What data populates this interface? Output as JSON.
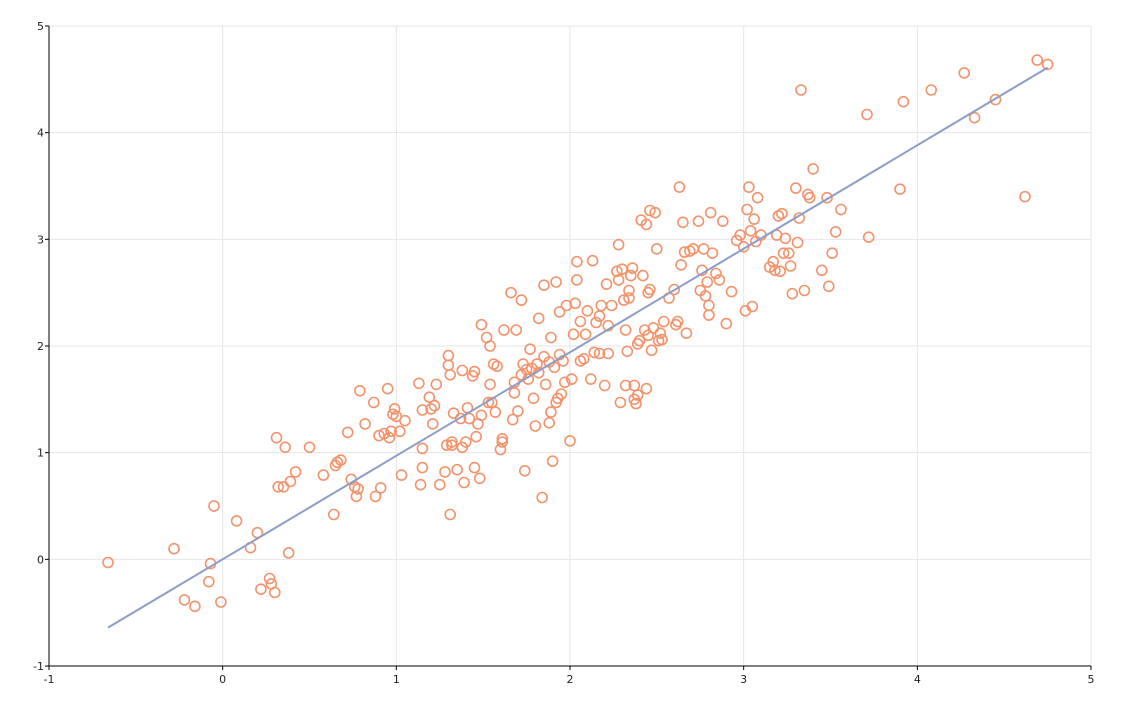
{
  "colors": {
    "points": "#f4926a",
    "fit_line": "#8c9dc8",
    "grid": "#e6e6e6",
    "axis": "#000000"
  },
  "chart_data": {
    "type": "scatter",
    "title": "",
    "xlabel": "",
    "ylabel": "",
    "xlim": [
      -1,
      5
    ],
    "ylim": [
      -1,
      5
    ],
    "x_ticks": [
      -1,
      0,
      1,
      2,
      3,
      4,
      5
    ],
    "y_ticks": [
      -1,
      0,
      1,
      2,
      3,
      4,
      5
    ],
    "x_tick_labels": [
      "-1",
      "0",
      "1",
      "2",
      "3",
      "4",
      "5"
    ],
    "y_tick_labels": [
      "-1",
      "0",
      "1",
      "2",
      "3",
      "4",
      "5"
    ],
    "grid": true,
    "legend": "none",
    "series": [
      {
        "type": "scatter",
        "marker": "open-circle",
        "points": [
          [
            -0.66,
            -0.03
          ],
          [
            -0.28,
            0.1
          ],
          [
            -0.22,
            -0.38
          ],
          [
            -0.16,
            -0.44
          ],
          [
            -0.08,
            -0.21
          ],
          [
            -0.07,
            -0.04
          ],
          [
            -0.05,
            0.5
          ],
          [
            -0.01,
            -0.4
          ],
          [
            0.08,
            0.36
          ],
          [
            0.16,
            0.11
          ],
          [
            0.2,
            0.25
          ],
          [
            0.22,
            -0.28
          ],
          [
            0.27,
            -0.18
          ],
          [
            0.28,
            -0.23
          ],
          [
            0.3,
            -0.31
          ],
          [
            0.31,
            1.14
          ],
          [
            0.32,
            0.68
          ],
          [
            0.35,
            0.68
          ],
          [
            0.36,
            1.05
          ],
          [
            0.38,
            0.06
          ],
          [
            0.39,
            0.73
          ],
          [
            0.42,
            0.82
          ],
          [
            0.5,
            1.05
          ],
          [
            0.58,
            0.79
          ],
          [
            0.64,
            0.42
          ],
          [
            0.65,
            0.88
          ],
          [
            0.66,
            0.91
          ],
          [
            0.68,
            0.93
          ],
          [
            0.72,
            1.19
          ],
          [
            0.74,
            0.75
          ],
          [
            0.76,
            0.68
          ],
          [
            0.77,
            0.59
          ],
          [
            0.78,
            0.66
          ],
          [
            0.79,
            1.58
          ],
          [
            0.82,
            1.27
          ],
          [
            0.87,
            1.47
          ],
          [
            0.88,
            0.59
          ],
          [
            0.9,
            1.16
          ],
          [
            0.91,
            0.67
          ],
          [
            0.93,
            1.18
          ],
          [
            0.95,
            1.6
          ],
          [
            0.96,
            1.14
          ],
          [
            0.97,
            1.2
          ],
          [
            0.98,
            1.36
          ],
          [
            0.99,
            1.41
          ],
          [
            1.0,
            1.34
          ],
          [
            1.02,
            1.2
          ],
          [
            1.03,
            0.79
          ],
          [
            1.05,
            1.3
          ],
          [
            1.13,
            1.65
          ],
          [
            1.14,
            0.7
          ],
          [
            1.15,
            1.4
          ],
          [
            1.15,
            0.86
          ],
          [
            1.15,
            1.04
          ],
          [
            1.19,
            1.52
          ],
          [
            1.2,
            1.41
          ],
          [
            1.21,
            1.27
          ],
          [
            1.22,
            1.44
          ],
          [
            1.23,
            1.64
          ],
          [
            1.25,
            0.7
          ],
          [
            1.28,
            0.82
          ],
          [
            1.29,
            1.07
          ],
          [
            1.3,
            1.82
          ],
          [
            1.3,
            1.91
          ],
          [
            1.31,
            1.73
          ],
          [
            1.31,
            0.42
          ],
          [
            1.32,
            1.07
          ],
          [
            1.32,
            1.1
          ],
          [
            1.33,
            1.37
          ],
          [
            1.35,
            0.84
          ],
          [
            1.37,
            1.32
          ],
          [
            1.38,
            1.77
          ],
          [
            1.38,
            1.05
          ],
          [
            1.39,
            0.72
          ],
          [
            1.4,
            1.1
          ],
          [
            1.41,
            1.42
          ],
          [
            1.42,
            1.32
          ],
          [
            1.44,
            1.72
          ],
          [
            1.45,
            1.76
          ],
          [
            1.45,
            0.86
          ],
          [
            1.46,
            1.15
          ],
          [
            1.47,
            1.27
          ],
          [
            1.48,
            0.76
          ],
          [
            1.49,
            2.2
          ],
          [
            1.49,
            1.35
          ],
          [
            1.52,
            2.08
          ],
          [
            1.53,
            1.47
          ],
          [
            1.54,
            2.0
          ],
          [
            1.54,
            1.64
          ],
          [
            1.55,
            1.47
          ],
          [
            1.56,
            1.83
          ],
          [
            1.57,
            1.38
          ],
          [
            1.58,
            1.81
          ],
          [
            1.6,
            1.03
          ],
          [
            1.61,
            1.1
          ],
          [
            1.61,
            1.13
          ],
          [
            1.62,
            2.15
          ],
          [
            1.66,
            2.5
          ],
          [
            1.67,
            1.31
          ],
          [
            1.68,
            1.66
          ],
          [
            1.68,
            1.56
          ],
          [
            1.69,
            2.15
          ],
          [
            1.7,
            1.39
          ],
          [
            1.72,
            2.43
          ],
          [
            1.72,
            1.73
          ],
          [
            1.73,
            1.83
          ],
          [
            1.74,
            0.83
          ],
          [
            1.75,
            1.78
          ],
          [
            1.76,
            1.69
          ],
          [
            1.77,
            1.97
          ],
          [
            1.78,
            1.79
          ],
          [
            1.79,
            1.51
          ],
          [
            1.8,
            1.25
          ],
          [
            1.81,
            1.83
          ],
          [
            1.82,
            1.75
          ],
          [
            1.82,
            2.26
          ],
          [
            1.84,
            0.58
          ],
          [
            1.85,
            2.57
          ],
          [
            1.85,
            1.9
          ],
          [
            1.86,
            1.64
          ],
          [
            1.88,
            1.85
          ],
          [
            1.88,
            1.28
          ],
          [
            1.89,
            2.08
          ],
          [
            1.89,
            1.38
          ],
          [
            1.9,
            0.92
          ],
          [
            1.91,
            1.8
          ],
          [
            1.92,
            2.6
          ],
          [
            1.92,
            1.47
          ],
          [
            1.93,
            1.51
          ],
          [
            1.94,
            1.92
          ],
          [
            1.94,
            2.32
          ],
          [
            1.95,
            1.55
          ],
          [
            1.96,
            1.86
          ],
          [
            1.97,
            1.66
          ],
          [
            1.98,
            2.38
          ],
          [
            2.0,
            1.11
          ],
          [
            2.01,
            1.69
          ],
          [
            2.02,
            2.11
          ],
          [
            2.03,
            2.4
          ],
          [
            2.04,
            2.79
          ],
          [
            2.04,
            2.62
          ],
          [
            2.06,
            2.23
          ],
          [
            2.06,
            1.86
          ],
          [
            2.08,
            1.88
          ],
          [
            2.09,
            2.11
          ],
          [
            2.1,
            2.33
          ],
          [
            2.12,
            1.69
          ],
          [
            2.13,
            2.8
          ],
          [
            2.14,
            1.94
          ],
          [
            2.15,
            2.22
          ],
          [
            2.17,
            2.28
          ],
          [
            2.17,
            1.93
          ],
          [
            2.18,
            2.38
          ],
          [
            2.2,
            1.63
          ],
          [
            2.21,
            2.58
          ],
          [
            2.22,
            2.19
          ],
          [
            2.22,
            1.93
          ],
          [
            2.24,
            2.38
          ],
          [
            2.27,
            2.7
          ],
          [
            2.28,
            2.62
          ],
          [
            2.28,
            2.95
          ],
          [
            2.29,
            1.47
          ],
          [
            2.3,
            2.72
          ],
          [
            2.31,
            2.43
          ],
          [
            2.32,
            1.63
          ],
          [
            2.32,
            2.15
          ],
          [
            2.33,
            1.95
          ],
          [
            2.34,
            2.45
          ],
          [
            2.34,
            2.52
          ],
          [
            2.35,
            2.66
          ],
          [
            2.36,
            2.73
          ],
          [
            2.37,
            1.5
          ],
          [
            2.37,
            1.63
          ],
          [
            2.38,
            1.46
          ],
          [
            2.39,
            1.54
          ],
          [
            2.39,
            2.02
          ],
          [
            2.4,
            2.05
          ],
          [
            2.41,
            3.18
          ],
          [
            2.42,
            2.66
          ],
          [
            2.43,
            2.15
          ],
          [
            2.44,
            1.6
          ],
          [
            2.44,
            3.14
          ],
          [
            2.45,
            2.1
          ],
          [
            2.45,
            2.5
          ],
          [
            2.46,
            3.27
          ],
          [
            2.46,
            2.53
          ],
          [
            2.47,
            1.96
          ],
          [
            2.48,
            2.17
          ],
          [
            2.49,
            3.25
          ],
          [
            2.5,
            2.91
          ],
          [
            2.51,
            2.05
          ],
          [
            2.52,
            2.12
          ],
          [
            2.53,
            2.06
          ],
          [
            2.54,
            2.23
          ],
          [
            2.57,
            2.45
          ],
          [
            2.6,
            2.53
          ],
          [
            2.61,
            2.2
          ],
          [
            2.62,
            2.23
          ],
          [
            2.63,
            3.49
          ],
          [
            2.64,
            2.76
          ],
          [
            2.65,
            3.16
          ],
          [
            2.66,
            2.88
          ],
          [
            2.67,
            2.12
          ],
          [
            2.69,
            2.89
          ],
          [
            2.71,
            2.91
          ],
          [
            2.74,
            3.17
          ],
          [
            2.75,
            2.52
          ],
          [
            2.76,
            2.71
          ],
          [
            2.77,
            2.91
          ],
          [
            2.78,
            2.47
          ],
          [
            2.79,
            2.6
          ],
          [
            2.8,
            2.38
          ],
          [
            2.8,
            2.29
          ],
          [
            2.81,
            3.25
          ],
          [
            2.82,
            2.87
          ],
          [
            2.84,
            2.68
          ],
          [
            2.86,
            2.62
          ],
          [
            2.88,
            3.17
          ],
          [
            2.9,
            2.21
          ],
          [
            2.93,
            2.51
          ],
          [
            2.96,
            2.99
          ],
          [
            2.98,
            3.04
          ],
          [
            3.0,
            2.93
          ],
          [
            3.01,
            2.33
          ],
          [
            3.02,
            3.28
          ],
          [
            3.03,
            3.49
          ],
          [
            3.04,
            3.08
          ],
          [
            3.05,
            2.37
          ],
          [
            3.06,
            3.19
          ],
          [
            3.07,
            2.98
          ],
          [
            3.08,
            3.39
          ],
          [
            3.1,
            3.04
          ],
          [
            3.15,
            2.74
          ],
          [
            3.17,
            2.79
          ],
          [
            3.18,
            2.71
          ],
          [
            3.19,
            3.04
          ],
          [
            3.2,
            3.22
          ],
          [
            3.21,
            2.7
          ],
          [
            3.22,
            3.24
          ],
          [
            3.23,
            2.87
          ],
          [
            3.24,
            3.01
          ],
          [
            3.26,
            2.87
          ],
          [
            3.27,
            2.75
          ],
          [
            3.28,
            2.49
          ],
          [
            3.3,
            3.48
          ],
          [
            3.31,
            2.97
          ],
          [
            3.32,
            3.2
          ],
          [
            3.33,
            4.4
          ],
          [
            3.35,
            2.52
          ],
          [
            3.37,
            3.42
          ],
          [
            3.38,
            3.39
          ],
          [
            3.4,
            3.66
          ],
          [
            3.45,
            2.71
          ],
          [
            3.48,
            3.39
          ],
          [
            3.49,
            2.56
          ],
          [
            3.51,
            2.87
          ],
          [
            3.53,
            3.07
          ],
          [
            3.56,
            3.28
          ],
          [
            3.71,
            4.17
          ],
          [
            3.72,
            3.02
          ],
          [
            3.9,
            3.47
          ],
          [
            3.92,
            4.29
          ],
          [
            4.08,
            4.4
          ],
          [
            4.27,
            4.56
          ],
          [
            4.33,
            4.14
          ],
          [
            4.45,
            4.31
          ],
          [
            4.62,
            3.4
          ],
          [
            4.69,
            4.68
          ],
          [
            4.75,
            4.64
          ]
        ]
      },
      {
        "type": "line",
        "points": [
          [
            -0.66,
            -0.64
          ],
          [
            4.75,
            4.61
          ]
        ]
      }
    ]
  }
}
